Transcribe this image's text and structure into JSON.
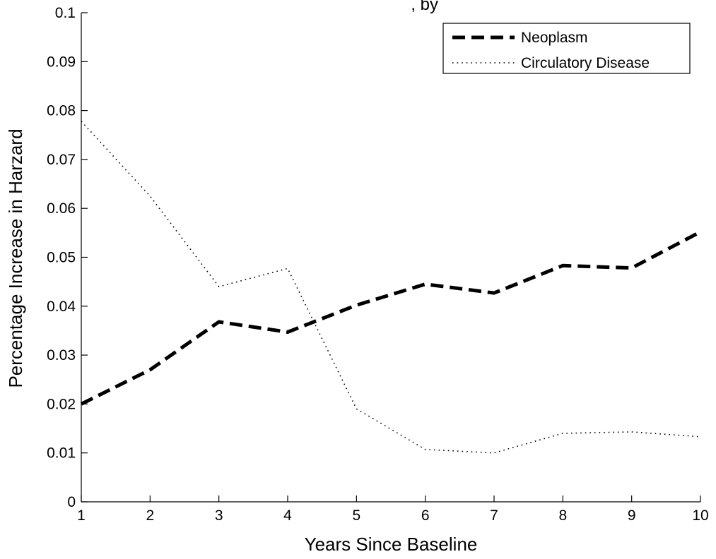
{
  "chart_data": {
    "type": "line",
    "title_fragment": ", by",
    "xlabel": "Years Since Baseline",
    "ylabel": "Percentage Increase in Harzard",
    "xlim": [
      1,
      10
    ],
    "ylim": [
      0,
      0.1
    ],
    "xticks": [
      "1",
      "2",
      "3",
      "4",
      "5",
      "6",
      "7",
      "8",
      "9",
      "10"
    ],
    "yticks": [
      "0",
      "0.01",
      "0.02",
      "0.03",
      "0.04",
      "0.05",
      "0.06",
      "0.07",
      "0.08",
      "0.09",
      "0.1"
    ],
    "legend_position": "top-right",
    "grid": false,
    "series": [
      {
        "name": "Neoplasm",
        "style": "dashed",
        "color": "#000000",
        "x": [
          1,
          2,
          3,
          4,
          5,
          6,
          7,
          8,
          9,
          10
        ],
        "values": [
          0.02,
          0.027,
          0.0368,
          0.0347,
          0.0402,
          0.0445,
          0.0427,
          0.0483,
          0.0478,
          0.0552
        ]
      },
      {
        "name": "Circulatory Disease",
        "style": "dotted",
        "color": "#000000",
        "x": [
          1,
          2,
          3,
          4,
          5,
          6,
          7,
          8,
          9,
          10
        ],
        "values": [
          0.0778,
          0.0625,
          0.044,
          0.0477,
          0.019,
          0.0107,
          0.01,
          0.014,
          0.0143,
          0.0133
        ]
      }
    ]
  }
}
